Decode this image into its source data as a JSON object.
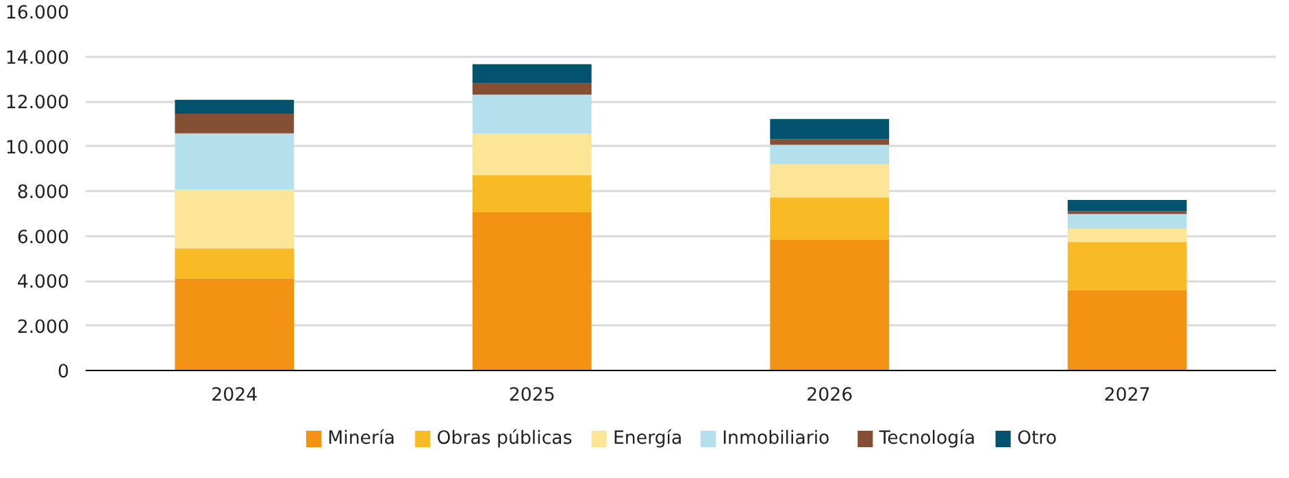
{
  "chart_data": {
    "type": "bar",
    "stacked": true,
    "categories": [
      "2024",
      "2025",
      "2026",
      "2027"
    ],
    "series": [
      {
        "name": "Minería",
        "color": "#f39313",
        "values": [
          4100,
          7080,
          5850,
          3590
        ]
      },
      {
        "name": "Obras públicas",
        "color": "#f9bb25",
        "values": [
          1350,
          1630,
          1870,
          2140
        ]
      },
      {
        "name": "Energía",
        "color": "#fde598",
        "values": [
          2620,
          1850,
          1480,
          590
        ]
      },
      {
        "name": "Inmobiliario",
        "color": "#b4dfed",
        "values": [
          2500,
          1740,
          860,
          660
        ]
      },
      {
        "name": "Tecnología",
        "color": "#844f33",
        "values": [
          880,
          500,
          250,
          120
        ]
      },
      {
        "name": "Otro",
        "color": "#03526f",
        "values": [
          620,
          860,
          900,
          500
        ]
      }
    ],
    "ylim": [
      0,
      16000
    ],
    "yticks": [
      0,
      {
        "value": 2000,
        "label": "2.000"
      },
      {
        "value": 4000,
        "label": "4.000"
      },
      {
        "value": 6000,
        "label": "6.000"
      },
      {
        "value": 8000,
        "label": "8.000"
      },
      {
        "value": 10000,
        "label": "10.000"
      },
      {
        "value": 12000,
        "label": "12.000"
      },
      {
        "value": 14000,
        "label": "14.000"
      },
      {
        "value": 16000,
        "label": "16.000"
      }
    ],
    "grid": "y",
    "legend": "bottom"
  }
}
